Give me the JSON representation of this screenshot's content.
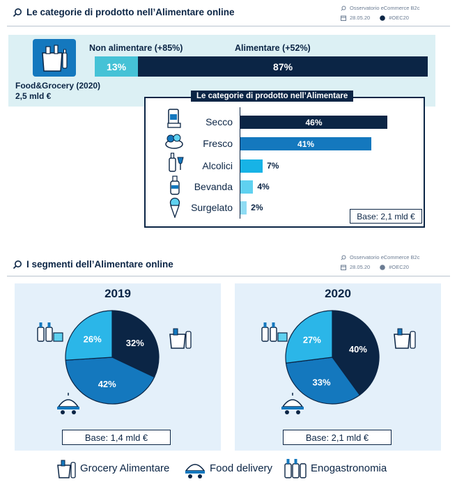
{
  "section1": {
    "title": "Le categorie di prodotto nell’Alimentare online",
    "source": "Osservatorio eCommerce B2c",
    "date": "28.05.20",
    "tag": "#OEC20"
  },
  "foodgrocery": {
    "label": "Food&Grocery (2020)",
    "value": "2,5 mld €",
    "non_food_label": "Non alimentare (+85%)",
    "food_label": "Alimentare (+52%)",
    "non_food_pct_label": "13%",
    "food_pct_label": "87%",
    "non_food_pct": 13,
    "food_pct": 87
  },
  "categories": {
    "title": "Le categorie di prodotto nell’Alimentare",
    "base": "Base: 2,1 mld €",
    "items": [
      {
        "name": "Secco",
        "value": 46,
        "label": "46%",
        "color": "#0b2545",
        "icon": "dry-goods-icon"
      },
      {
        "name": "Fresco",
        "value": 41,
        "label": "41%",
        "color": "#1478be",
        "icon": "fresh-food-icon"
      },
      {
        "name": "Alcolici",
        "value": 7,
        "label": "7%",
        "color": "#17b3e6",
        "icon": "alcohol-icon"
      },
      {
        "name": "Bevanda",
        "value": 4,
        "label": "4%",
        "color": "#5fd1f0",
        "icon": "beverage-icon"
      },
      {
        "name": "Surgelato",
        "value": 2,
        "label": "2%",
        "color": "#8fdcf4",
        "icon": "frozen-icon"
      }
    ]
  },
  "section2": {
    "title": "I segmenti dell’Alimentare online",
    "source": "Osservatorio eCommerce B2c",
    "date": "28.05.20",
    "tag": "#OEC20"
  },
  "chart_data": [
    {
      "type": "bar",
      "title": "Le categorie di prodotto nell’Alimentare",
      "categories": [
        "Secco",
        "Fresco",
        "Alcolici",
        "Bevanda",
        "Surgelato"
      ],
      "values": [
        46,
        41,
        7,
        4,
        2
      ],
      "unit": "%",
      "orientation": "horizontal"
    },
    {
      "type": "bar",
      "title": "Food&Grocery (2020)",
      "categories": [
        "Non alimentare (+85%)",
        "Alimentare (+52%)"
      ],
      "values": [
        13,
        87
      ],
      "unit": "%",
      "stacked": true
    },
    {
      "type": "pie",
      "title": "2019",
      "categories": [
        "Grocery Alimentare",
        "Food delivery",
        "Enogastronomia"
      ],
      "values": [
        32,
        42,
        26
      ],
      "labels": [
        "32%",
        "42%",
        "26%"
      ],
      "colors": [
        "#0b2545",
        "#1478be",
        "#2bb6e8"
      ],
      "base": "Base: 1,4 mld €"
    },
    {
      "type": "pie",
      "title": "2020",
      "categories": [
        "Grocery Alimentare",
        "Food delivery",
        "Enogastronomia"
      ],
      "values": [
        40,
        33,
        27
      ],
      "labels": [
        "40%",
        "33%",
        "27%"
      ],
      "colors": [
        "#0b2545",
        "#1478be",
        "#2bb6e8"
      ],
      "base": "Base: 2,1 mld €"
    }
  ],
  "legend": [
    {
      "label": "Grocery Alimentare",
      "icon": "grocery-icon"
    },
    {
      "label": "Food delivery",
      "icon": "delivery-icon"
    },
    {
      "label": "Enogastronomia",
      "icon": "wine-bottles-icon"
    }
  ],
  "colors": {
    "navy": "#0b2545",
    "blue": "#1478be",
    "light_blue": "#2bb6e8",
    "teal_bar": "#45c2d6",
    "panel_teal": "#dcf0f4",
    "panel_blue": "#e4f0fa"
  }
}
